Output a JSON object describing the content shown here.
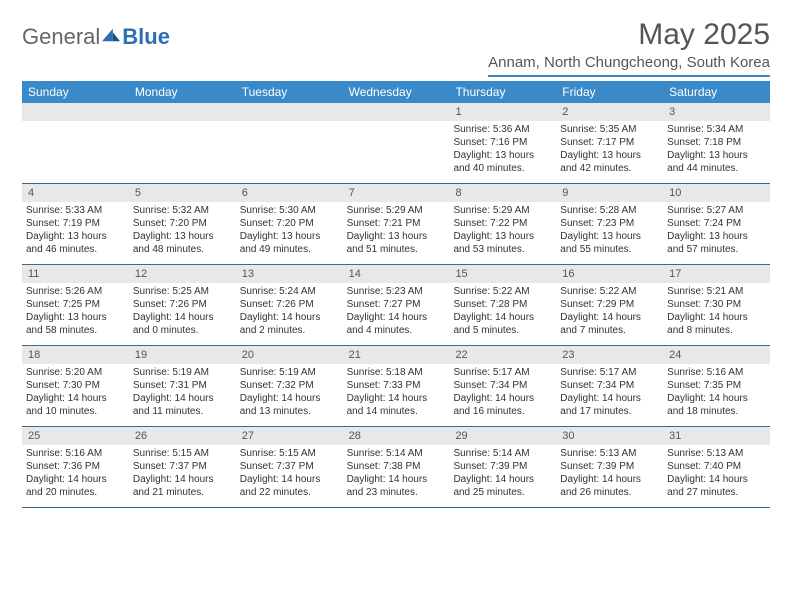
{
  "logo": {
    "part1": "General",
    "part2": "Blue"
  },
  "title": "May 2025",
  "location": "Annam, North Chungcheong, South Korea",
  "colors": {
    "header_bar": "#3a8ac9",
    "row_border": "#3a6a94",
    "daynum_bg": "#e8e8e8",
    "text": "#333333",
    "logo_blue": "#2c6fb3"
  },
  "day_names": [
    "Sunday",
    "Monday",
    "Tuesday",
    "Wednesday",
    "Thursday",
    "Friday",
    "Saturday"
  ],
  "weeks": [
    [
      null,
      null,
      null,
      null,
      {
        "n": "1",
        "sr": "5:36 AM",
        "ss": "7:16 PM",
        "dl": "13 hours and 40 minutes."
      },
      {
        "n": "2",
        "sr": "5:35 AM",
        "ss": "7:17 PM",
        "dl": "13 hours and 42 minutes."
      },
      {
        "n": "3",
        "sr": "5:34 AM",
        "ss": "7:18 PM",
        "dl": "13 hours and 44 minutes."
      }
    ],
    [
      {
        "n": "4",
        "sr": "5:33 AM",
        "ss": "7:19 PM",
        "dl": "13 hours and 46 minutes."
      },
      {
        "n": "5",
        "sr": "5:32 AM",
        "ss": "7:20 PM",
        "dl": "13 hours and 48 minutes."
      },
      {
        "n": "6",
        "sr": "5:30 AM",
        "ss": "7:20 PM",
        "dl": "13 hours and 49 minutes."
      },
      {
        "n": "7",
        "sr": "5:29 AM",
        "ss": "7:21 PM",
        "dl": "13 hours and 51 minutes."
      },
      {
        "n": "8",
        "sr": "5:29 AM",
        "ss": "7:22 PM",
        "dl": "13 hours and 53 minutes."
      },
      {
        "n": "9",
        "sr": "5:28 AM",
        "ss": "7:23 PM",
        "dl": "13 hours and 55 minutes."
      },
      {
        "n": "10",
        "sr": "5:27 AM",
        "ss": "7:24 PM",
        "dl": "13 hours and 57 minutes."
      }
    ],
    [
      {
        "n": "11",
        "sr": "5:26 AM",
        "ss": "7:25 PM",
        "dl": "13 hours and 58 minutes."
      },
      {
        "n": "12",
        "sr": "5:25 AM",
        "ss": "7:26 PM",
        "dl": "14 hours and 0 minutes."
      },
      {
        "n": "13",
        "sr": "5:24 AM",
        "ss": "7:26 PM",
        "dl": "14 hours and 2 minutes."
      },
      {
        "n": "14",
        "sr": "5:23 AM",
        "ss": "7:27 PM",
        "dl": "14 hours and 4 minutes."
      },
      {
        "n": "15",
        "sr": "5:22 AM",
        "ss": "7:28 PM",
        "dl": "14 hours and 5 minutes."
      },
      {
        "n": "16",
        "sr": "5:22 AM",
        "ss": "7:29 PM",
        "dl": "14 hours and 7 minutes."
      },
      {
        "n": "17",
        "sr": "5:21 AM",
        "ss": "7:30 PM",
        "dl": "14 hours and 8 minutes."
      }
    ],
    [
      {
        "n": "18",
        "sr": "5:20 AM",
        "ss": "7:30 PM",
        "dl": "14 hours and 10 minutes."
      },
      {
        "n": "19",
        "sr": "5:19 AM",
        "ss": "7:31 PM",
        "dl": "14 hours and 11 minutes."
      },
      {
        "n": "20",
        "sr": "5:19 AM",
        "ss": "7:32 PM",
        "dl": "14 hours and 13 minutes."
      },
      {
        "n": "21",
        "sr": "5:18 AM",
        "ss": "7:33 PM",
        "dl": "14 hours and 14 minutes."
      },
      {
        "n": "22",
        "sr": "5:17 AM",
        "ss": "7:34 PM",
        "dl": "14 hours and 16 minutes."
      },
      {
        "n": "23",
        "sr": "5:17 AM",
        "ss": "7:34 PM",
        "dl": "14 hours and 17 minutes."
      },
      {
        "n": "24",
        "sr": "5:16 AM",
        "ss": "7:35 PM",
        "dl": "14 hours and 18 minutes."
      }
    ],
    [
      {
        "n": "25",
        "sr": "5:16 AM",
        "ss": "7:36 PM",
        "dl": "14 hours and 20 minutes."
      },
      {
        "n": "26",
        "sr": "5:15 AM",
        "ss": "7:37 PM",
        "dl": "14 hours and 21 minutes."
      },
      {
        "n": "27",
        "sr": "5:15 AM",
        "ss": "7:37 PM",
        "dl": "14 hours and 22 minutes."
      },
      {
        "n": "28",
        "sr": "5:14 AM",
        "ss": "7:38 PM",
        "dl": "14 hours and 23 minutes."
      },
      {
        "n": "29",
        "sr": "5:14 AM",
        "ss": "7:39 PM",
        "dl": "14 hours and 25 minutes."
      },
      {
        "n": "30",
        "sr": "5:13 AM",
        "ss": "7:39 PM",
        "dl": "14 hours and 26 minutes."
      },
      {
        "n": "31",
        "sr": "5:13 AM",
        "ss": "7:40 PM",
        "dl": "14 hours and 27 minutes."
      }
    ]
  ],
  "labels": {
    "sunrise": "Sunrise: ",
    "sunset": "Sunset: ",
    "daylight": "Daylight: "
  }
}
